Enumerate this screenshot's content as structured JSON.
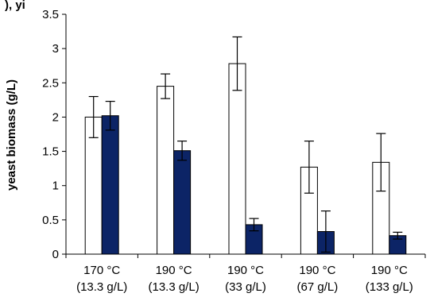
{
  "top_text": "), yi",
  "chart_data": {
    "type": "bar",
    "title": "",
    "xlabel": "",
    "ylabel": "yeast biomass (g/L)",
    "ylim": [
      0,
      3.5
    ],
    "yticks": [
      "0",
      "0.5",
      "1",
      "1.5",
      "2",
      "2.5",
      "3",
      "3.5"
    ],
    "categories": [
      [
        "170 °C",
        "(13.3 g/L)"
      ],
      [
        "190 °C",
        "(13.3 g/L)"
      ],
      [
        "190 °C",
        "(33 g/L)"
      ],
      [
        "190 °C",
        "(67 g/L)"
      ],
      [
        "190 °C",
        "(133 g/L)"
      ]
    ],
    "series": [
      {
        "values": [
          2.0,
          2.45,
          2.78,
          1.27,
          1.34
        ],
        "errors": [
          0.3,
          0.18,
          0.39,
          0.38,
          0.42
        ],
        "fill": "#ffffff",
        "stroke": "#000000"
      },
      {
        "values": [
          2.02,
          1.51,
          0.43,
          0.33,
          0.27
        ],
        "errors": [
          0.21,
          0.14,
          0.09,
          0.3,
          0.05
        ],
        "fill": "#0c2466",
        "stroke": "#000000"
      }
    ],
    "grid": false,
    "legend": "none"
  }
}
